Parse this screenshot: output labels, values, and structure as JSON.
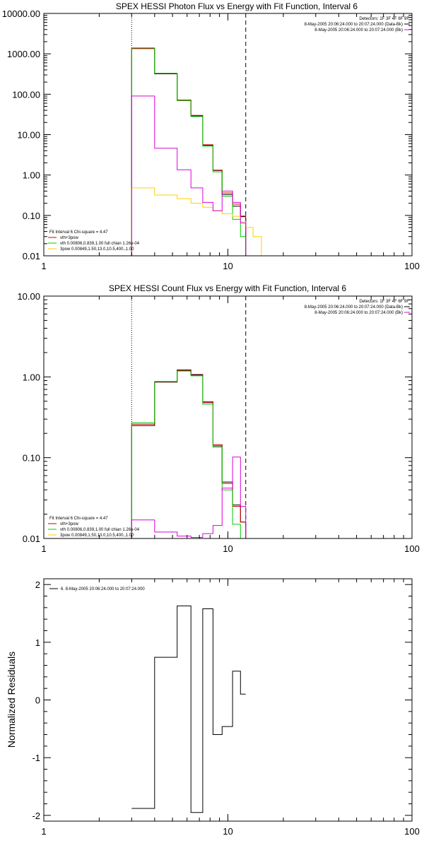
{
  "colors": {
    "data": "#000000",
    "total": "#cc0000",
    "vth": "#00cc00",
    "spex": "#ffd000",
    "bk": "#dd00dd"
  },
  "chart_data": [
    {
      "type": "line",
      "title": "SPEX HESSI Photon Flux vs Energy with Fit Function, Interval 6",
      "xlabel": "",
      "ylabel": "",
      "xscale": "log",
      "yscale": "log",
      "xlim": [
        1,
        100
      ],
      "ylim": [
        0.01,
        10000
      ],
      "xticks": [
        {
          "v": 1,
          "label": "1"
        },
        {
          "v": 10,
          "label": "10"
        },
        {
          "v": 100,
          "label": "100"
        }
      ],
      "yticks": [
        {
          "v": 10000,
          "label": "10000.00"
        },
        {
          "v": 1000,
          "label": "1000.00"
        },
        {
          "v": 100,
          "label": "100.00"
        },
        {
          "v": 10,
          "label": "10.00"
        },
        {
          "v": 1,
          "label": "1.00"
        },
        {
          "v": 0.1,
          "label": "0.10"
        },
        {
          "v": 0.01,
          "label": "0.01"
        }
      ],
      "vlines": [
        {
          "x": 3,
          "style": "dotted"
        },
        {
          "x": 12.5,
          "style": "dashed"
        }
      ],
      "legend_top_right": [
        "Detectors: 1F 3F 4F 6F 9F",
        "8-May-2005 20:06:24.000 to 20:07:24.000 (Data-Bk)",
        "8-May-2005 20:06:24.000 to 20:07:24.000 (Bk)"
      ],
      "legend_top_right_colors": [
        "",
        "data",
        "bk"
      ],
      "legend_bottom_left": [
        "Fit Interval 6    Chi-square = 4.47",
        "vth+3pow",
        "vth 0.00806,0.839,1.00  full chian 1.26e-04",
        "3pow 0.00849,1.50,13.0,10.5,400.,1.00"
      ],
      "legend_bottom_left_colors": [
        "",
        "total",
        "vth",
        "spex"
      ],
      "series": [
        {
          "color": "data",
          "edges": [
            3,
            4,
            5.3,
            6.3,
            7.3,
            8.3,
            9.3,
            10.6,
            11.7,
            12.5
          ],
          "values": [
            1350,
            320,
            70,
            29,
            5.4,
            1.3,
            0.33,
            0.17,
            0.093
          ]
        },
        {
          "color": "total",
          "edges": [
            3,
            4,
            5.3,
            6.3,
            7.3,
            8.3,
            9.3,
            10.6,
            11.7,
            12.5
          ],
          "values": [
            1360,
            330,
            72,
            30,
            5.6,
            1.32,
            0.36,
            0.19,
            0.096
          ]
        },
        {
          "color": "vth",
          "edges": [
            3,
            4,
            5.3,
            6.3,
            7.3,
            8.3,
            9.3,
            10.6,
            11.7,
            12.5
          ],
          "values": [
            1400,
            330,
            70,
            28,
            5.2,
            1.2,
            0.3,
            0.08,
            0.03
          ]
        },
        {
          "color": "spex",
          "edges": [
            3,
            4,
            5.3,
            6.3,
            7.3,
            8.3,
            9.3,
            10.6,
            11.7,
            12.5,
            13.7,
            15.2
          ],
          "values": [
            0.48,
            0.32,
            0.26,
            0.2,
            0.16,
            0.13,
            0.11,
            0.095,
            0.07,
            0.05,
            0.03
          ]
        },
        {
          "color": "bk",
          "edges": [
            3,
            4,
            5.3,
            6.3,
            7.3,
            8.3,
            9.3,
            10.6,
            11.7,
            12.5
          ],
          "values": [
            90,
            4.6,
            1.35,
            0.48,
            0.21,
            0.13,
            0.4,
            0.21,
            0.065
          ]
        }
      ]
    },
    {
      "type": "line",
      "title": "SPEX HESSI Count Flux vs Energy with Fit Function, Interval 6",
      "xlabel": "",
      "ylabel": "",
      "xscale": "log",
      "yscale": "log",
      "xlim": [
        1,
        100
      ],
      "ylim": [
        0.01,
        10
      ],
      "xticks": [
        {
          "v": 1,
          "label": "1"
        },
        {
          "v": 10,
          "label": "10"
        },
        {
          "v": 100,
          "label": "100"
        }
      ],
      "yticks": [
        {
          "v": 10,
          "label": "10.00"
        },
        {
          "v": 1,
          "label": "1.00"
        },
        {
          "v": 0.1,
          "label": "0.10"
        },
        {
          "v": 0.01,
          "label": "0.01"
        }
      ],
      "vlines": [
        {
          "x": 3,
          "style": "dotted"
        },
        {
          "x": 12.5,
          "style": "dashed"
        }
      ],
      "legend_top_right": [
        "Detectors: 1F 3F 4F 6F 9F",
        "8-May-2005 20:06:24.000 to 20:07:24.000 (Data-Bk)",
        "8-May-2005 20:06:24.000 to 20:07:24.000 (Bk)"
      ],
      "legend_top_right_colors": [
        "",
        "data",
        "bk"
      ],
      "legend_bottom_left": [
        "Fit Interval 6    Chi-square = 4.47",
        "vth+3pow",
        "vth 0.00806,0.839,1.00  full chian 1.26e-04",
        "3pow 0.00849,1.50,13.0,10.5,400.,1.00"
      ],
      "legend_bottom_left_colors": [
        "",
        "total",
        "vth",
        "spex"
      ],
      "series": [
        {
          "color": "data",
          "edges": [
            3,
            4,
            5.3,
            6.3,
            7.3,
            8.3,
            9.3,
            10.6,
            11.7,
            12.5
          ],
          "values": [
            0.25,
            0.86,
            1.22,
            1.07,
            0.49,
            0.14,
            0.05,
            0.026,
            0.016
          ]
        },
        {
          "color": "total",
          "edges": [
            3,
            4,
            5.3,
            6.3,
            7.3,
            8.3,
            9.3,
            10.6,
            11.7,
            12.5
          ],
          "values": [
            0.26,
            0.87,
            1.2,
            1.05,
            0.48,
            0.145,
            0.048,
            0.025,
            0.016
          ]
        },
        {
          "color": "vth",
          "edges": [
            3,
            4,
            5.3,
            6.3,
            7.3,
            8.3,
            9.3,
            10.6,
            11.7
          ],
          "values": [
            0.27,
            0.88,
            1.18,
            1.03,
            0.46,
            0.135,
            0.04,
            0.015
          ]
        },
        {
          "color": "bk",
          "edges": [
            3,
            4,
            5.3,
            6.3,
            7.3,
            8.3,
            9.3,
            10.6,
            11.7,
            12.5
          ],
          "values": [
            0.017,
            0.012,
            0.0107,
            0.0103,
            0.0115,
            0.0145,
            0.042,
            0.102,
            0.025
          ]
        }
      ]
    },
    {
      "type": "line",
      "title": "",
      "xlabel": "",
      "ylabel": "Normalized Residuals",
      "xscale": "log",
      "yscale": "linear",
      "xlim": [
        1,
        100
      ],
      "ylim": [
        -2.1,
        2.1
      ],
      "xticks": [
        {
          "v": 1,
          "label": "1"
        },
        {
          "v": 10,
          "label": "10"
        },
        {
          "v": 100,
          "label": "100"
        }
      ],
      "yticks": [
        {
          "v": 2,
          "label": "2"
        },
        {
          "v": 1,
          "label": "1"
        },
        {
          "v": 0,
          "label": "0"
        },
        {
          "v": -1,
          "label": "-1"
        },
        {
          "v": -2,
          "label": "-2"
        }
      ],
      "vlines": [],
      "legend_top_left": [
        "6.  8-May-2005 20:06:24.000 to 20:07:24.000"
      ],
      "series": [
        {
          "color": "data",
          "edges": [
            3,
            4,
            5.3,
            6.3,
            7.3,
            8.3,
            9.3,
            10.6,
            11.7,
            12.5
          ],
          "values": [
            -1.88,
            0.74,
            1.63,
            -1.95,
            1.58,
            -0.6,
            -0.46,
            0.5,
            0.1
          ]
        }
      ]
    }
  ]
}
